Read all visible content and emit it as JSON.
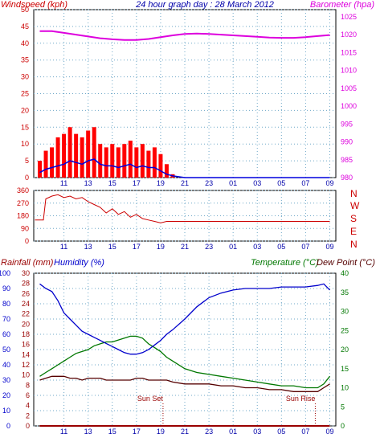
{
  "header": {
    "left": "Windspeed (kph)",
    "center": "24 hour graph day : 28 March 2012",
    "right": "Barometer (hpa)"
  },
  "bottom_header": {
    "rain": "Rainfall (mm)",
    "humidity": "Humidity (%)",
    "temperature": "Temperature (°C)",
    "dew": "Dew Point (°C)"
  },
  "direction_labels": [
    "N",
    "W",
    "S",
    "E",
    "N"
  ],
  "annotations": {
    "sun_set": "Sun Set",
    "sun_rise": "Sun Rise"
  },
  "colors": {
    "background": "#ffffff",
    "grid": "#6fa8c8",
    "wind_axis": "#cc0000",
    "baro": "#dd00dd",
    "gust": "#ff0000",
    "avg_wind": "#0000dd",
    "avg_wind_low": "#00aa00",
    "direction": "#cc0000",
    "humidity": "#0000cc",
    "temperature": "#007700",
    "dew": "#550000",
    "rain": "#990000",
    "rain_axis": "#0000cc",
    "temp_axis": "#007700",
    "title": "#0000aa"
  },
  "chart_data": [
    {
      "type": "line",
      "panel": "wind-barometer",
      "x_ticks": [
        "11",
        "13",
        "15",
        "17",
        "19",
        "21",
        "23",
        "01",
        "03",
        "05",
        "07",
        "09"
      ],
      "hours": [
        9,
        10,
        11,
        12,
        13,
        14,
        15,
        16,
        17,
        18,
        19,
        20,
        21,
        22,
        23,
        24,
        25,
        26,
        27,
        28,
        29,
        30,
        31,
        32,
        33
      ],
      "y_left_ticks": [
        0,
        5,
        10,
        15,
        20,
        25,
        30,
        35,
        40,
        45,
        50
      ],
      "ylim_left": [
        0,
        50
      ],
      "y_right_ticks": [
        980,
        985,
        990,
        995,
        1000,
        1005,
        1010,
        1015,
        1020,
        1025
      ],
      "ylim_right": [
        980,
        1027
      ],
      "series": [
        {
          "name": "Barometer (hpa)",
          "axis": "right",
          "x": [
            9,
            10,
            11,
            12,
            13,
            14,
            15,
            16,
            17,
            18,
            19,
            20,
            21,
            22,
            23,
            24,
            25,
            26,
            27,
            28,
            29,
            30,
            31,
            32,
            33
          ],
          "values": [
            1021,
            1021,
            1020.5,
            1020,
            1019.5,
            1019,
            1018.7,
            1018.5,
            1018.5,
            1018.8,
            1019.3,
            1019.8,
            1020.2,
            1020.3,
            1020.2,
            1020,
            1019.8,
            1019.6,
            1019.4,
            1019.2,
            1019.1,
            1019.1,
            1019.3,
            1019.6,
            1019.9
          ]
        },
        {
          "name": "Wind gust (kph)",
          "axis": "left",
          "x": [
            9,
            9.5,
            10,
            10.5,
            11,
            11.5,
            12,
            12.5,
            13,
            13.5,
            14,
            14.5,
            15,
            15.5,
            16,
            16.5,
            17,
            17.5,
            18,
            18.5,
            19,
            19.5,
            20,
            21,
            22,
            23,
            24,
            25,
            26,
            27,
            28,
            29,
            30,
            31,
            32,
            33
          ],
          "values": [
            5,
            8,
            9,
            12,
            13,
            15,
            13,
            12,
            14,
            15,
            10,
            9,
            10,
            9,
            10,
            11,
            9,
            10,
            8,
            9,
            7,
            4,
            1,
            0,
            0,
            0,
            0,
            0,
            0,
            0,
            0,
            0,
            0,
            0,
            0,
            0
          ]
        },
        {
          "name": "Average wind (kph)",
          "axis": "left",
          "x": [
            9,
            9.5,
            10,
            10.5,
            11,
            11.5,
            12,
            12.5,
            13,
            13.5,
            14,
            14.5,
            15,
            15.5,
            16,
            16.5,
            17,
            17.5,
            18,
            18.5,
            19,
            19.5,
            20,
            21,
            33
          ],
          "values": [
            1.5,
            2.5,
            3,
            3.5,
            4,
            5,
            4.5,
            4,
            5,
            5.5,
            4,
            3.5,
            3.5,
            3,
            3.5,
            4,
            3,
            3.5,
            3,
            3,
            2,
            1,
            0.5,
            0,
            0
          ]
        }
      ]
    },
    {
      "type": "scatter",
      "panel": "wind-direction",
      "x_ticks": [
        "11",
        "13",
        "15",
        "17",
        "19",
        "21",
        "23",
        "01",
        "03",
        "05",
        "07",
        "09"
      ],
      "y_ticks": [
        0,
        90,
        180,
        270,
        360
      ],
      "ylim": [
        0,
        360
      ],
      "series": [
        {
          "name": "Wind direction (°)",
          "x": [
            8.6,
            9.3,
            9.5,
            10,
            10.5,
            11,
            11.5,
            12,
            12.5,
            13,
            13.5,
            14,
            14.5,
            15,
            15.5,
            16,
            16.5,
            17,
            17.5,
            18,
            18.5,
            19,
            19.5,
            20,
            22,
            24,
            26,
            28,
            30,
            32,
            33
          ],
          "values": [
            150,
            150,
            300,
            320,
            330,
            310,
            320,
            300,
            310,
            280,
            260,
            240,
            200,
            230,
            190,
            210,
            170,
            190,
            160,
            150,
            140,
            130,
            140,
            140,
            140,
            140,
            140,
            140,
            140,
            140,
            140
          ]
        }
      ]
    },
    {
      "type": "line",
      "panel": "humidity-temperature",
      "x_ticks": [
        "11",
        "13",
        "15",
        "17",
        "19",
        "21",
        "23",
        "01",
        "03",
        "05",
        "07",
        "09"
      ],
      "y_humidity_ticks": [
        0,
        10,
        20,
        30,
        40,
        50,
        60,
        70,
        80,
        90,
        100
      ],
      "y_rain_ticks": [
        0,
        2,
        4,
        6,
        8,
        10,
        12,
        14,
        16,
        18,
        20,
        22,
        24,
        26,
        28,
        30
      ],
      "y_temp_ticks": [
        0,
        5,
        10,
        15,
        20,
        25,
        30,
        35,
        40
      ],
      "ylim_humidity": [
        0,
        100
      ],
      "ylim_temp": [
        0,
        40
      ],
      "series": [
        {
          "name": "Humidity (%)",
          "axis": "humidity",
          "x": [
            9,
            9.5,
            10,
            10.5,
            11,
            11.5,
            12,
            12.5,
            13,
            13.5,
            14,
            14.5,
            15,
            15.5,
            16,
            16.5,
            17,
            17.5,
            18,
            18.5,
            19,
            19.5,
            20,
            21,
            22,
            23,
            24,
            25,
            26,
            27,
            28,
            29,
            30,
            31,
            32,
            32.5,
            33
          ],
          "values": [
            93,
            90,
            88,
            82,
            74,
            70,
            66,
            62,
            60,
            58,
            56,
            54,
            52,
            50,
            48,
            47,
            47,
            48,
            50,
            53,
            56,
            60,
            63,
            70,
            78,
            84,
            87,
            89,
            90,
            90,
            90,
            91,
            91,
            91,
            92,
            93,
            89
          ]
        },
        {
          "name": "Temperature (°C)",
          "axis": "temperature",
          "x": [
            9,
            9.5,
            10,
            10.5,
            11,
            11.5,
            12,
            12.5,
            13,
            13.5,
            14,
            14.5,
            15,
            15.5,
            16,
            16.5,
            17,
            17.5,
            18,
            18.5,
            19,
            19.5,
            20,
            21,
            22,
            23,
            24,
            25,
            26,
            27,
            28,
            29,
            30,
            31,
            32,
            32.5,
            33
          ],
          "values": [
            13,
            14,
            15,
            16,
            17,
            18,
            19,
            19.5,
            20,
            21,
            21.5,
            22,
            22,
            22.5,
            23,
            23.5,
            23.5,
            23,
            21.5,
            20.5,
            19.5,
            18,
            17,
            15,
            14,
            13.5,
            13,
            12.5,
            12,
            11.5,
            11,
            10.5,
            10.5,
            10,
            10,
            11,
            13
          ]
        },
        {
          "name": "Dew Point (°C)",
          "axis": "temperature",
          "x": [
            9,
            9.5,
            10,
            10.5,
            11,
            11.5,
            12,
            12.5,
            13,
            13.5,
            14,
            14.5,
            15,
            15.5,
            16,
            16.5,
            17,
            17.5,
            18,
            18.5,
            19,
            19.5,
            20,
            21,
            22,
            23,
            24,
            25,
            26,
            27,
            28,
            29,
            30,
            31,
            32,
            32.5,
            33
          ],
          "values": [
            12,
            12.5,
            13,
            13,
            13,
            12.5,
            12.5,
            12,
            12.5,
            12.5,
            12.5,
            12,
            12,
            12,
            12,
            12,
            12.5,
            12.5,
            12,
            12,
            12,
            12,
            11.5,
            11,
            11,
            11,
            10.5,
            10.5,
            10,
            10,
            9.5,
            9.5,
            9,
            9,
            9,
            10,
            11
          ]
        },
        {
          "name": "Rainfall (mm)",
          "axis": "rain",
          "x": [
            9,
            33
          ],
          "values": [
            0,
            0
          ]
        }
      ],
      "markers": [
        {
          "label": "Sun Set",
          "x": 19.2
        },
        {
          "label": "Sun Rise",
          "x": 31.8
        }
      ]
    }
  ]
}
